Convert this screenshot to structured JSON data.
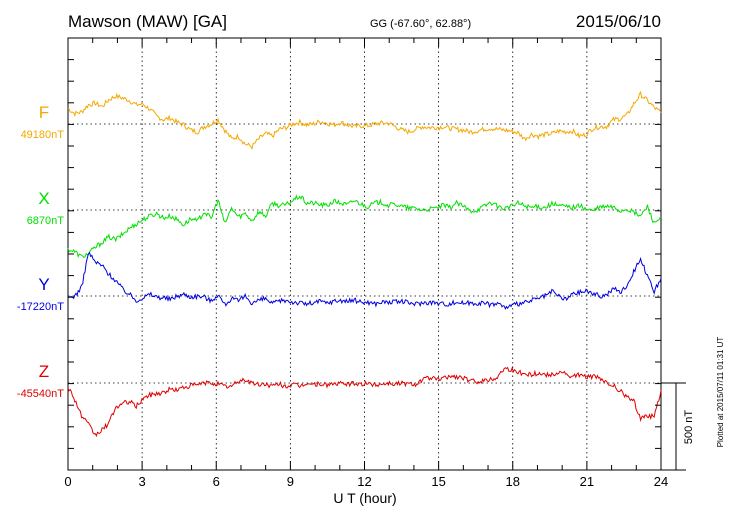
{
  "header": {
    "station": "Mawson (MAW)  [GA]",
    "coords": "GG (-67.60°,  62.88°)",
    "date": "2015/06/10"
  },
  "footer": {
    "plotted": "Plotted at 2015/07/11 01:31  UT",
    "scale_label": "500 nT"
  },
  "chart_data": {
    "type": "line",
    "xlabel": "U T (hour)",
    "xlim": [
      0,
      24
    ],
    "xticks": [
      0,
      3,
      6,
      9,
      12,
      15,
      18,
      21,
      24
    ],
    "scale_bar_nT": 500,
    "series": [
      {
        "name": "F",
        "baseline_label": "49180nT",
        "baseline_nT": 49180,
        "color": "#f5a800",
        "offsets_nT": [
          90,
          60,
          70,
          110,
          120,
          100,
          140,
          160,
          150,
          135,
          110,
          115,
          85,
          45,
          25,
          35,
          10,
          -5,
          -35,
          -45,
          -15,
          0,
          25,
          -35,
          -85,
          -70,
          -115,
          -130,
          -85,
          -55,
          -70,
          -30,
          -20,
          0,
          10,
          -5,
          0,
          15,
          5,
          -5,
          10,
          -5,
          -15,
          -10,
          -10,
          0,
          5,
          5,
          -15,
          -35,
          -45,
          -30,
          -15,
          -20,
          -20,
          -15,
          -25,
          -30,
          -35,
          -45,
          -40,
          -30,
          -25,
          -30,
          -35,
          -40,
          -50,
          -85,
          -60,
          -70,
          -60,
          -55,
          -40,
          -45,
          -40,
          -70,
          -60,
          -25,
          -15,
          -15,
          25,
          30,
          50,
          115,
          170,
          135,
          95,
          65
        ]
      },
      {
        "name": "X",
        "baseline_label": "6870nT",
        "baseline_nT": 6870,
        "color": "#00e000",
        "offsets_nT": [
          -225,
          -240,
          -270,
          -250,
          -215,
          -185,
          -155,
          -170,
          -140,
          -105,
          -80,
          -55,
          -35,
          -20,
          -45,
          -35,
          -55,
          -85,
          -50,
          -65,
          -10,
          -50,
          60,
          -80,
          10,
          -40,
          -20,
          -60,
          -10,
          -35,
          40,
          25,
          30,
          55,
          80,
          40,
          40,
          30,
          25,
          50,
          40,
          30,
          55,
          35,
          20,
          40,
          45,
          25,
          35,
          20,
          10,
          10,
          0,
          5,
          10,
          25,
          15,
          40,
          20,
          -5,
          0,
          20,
          45,
          20,
          10,
          20,
          40,
          25,
          15,
          20,
          15,
          35,
          25,
          20,
          15,
          25,
          5,
          -5,
          15,
          20,
          15,
          -5,
          5,
          -15,
          -35,
          20,
          -75,
          -40
        ]
      },
      {
        "name": "Y",
        "baseline_label": "-17220nT",
        "baseline_nT": -17220,
        "color": "#0000e0",
        "offsets_nT": [
          -10,
          0,
          50,
          250,
          195,
          175,
          125,
          90,
          40,
          10,
          -25,
          -10,
          10,
          -5,
          -10,
          -20,
          0,
          10,
          -5,
          0,
          -5,
          -30,
          10,
          -50,
          -15,
          -30,
          0,
          -40,
          -25,
          -15,
          -45,
          -30,
          -25,
          -35,
          -40,
          -45,
          -40,
          -30,
          -40,
          -30,
          -25,
          -30,
          -25,
          -35,
          -35,
          -45,
          -35,
          -35,
          -35,
          -30,
          -40,
          -45,
          -40,
          -35,
          -40,
          -45,
          -45,
          -35,
          -40,
          -40,
          -40,
          -40,
          -50,
          -40,
          -65,
          -60,
          -45,
          -40,
          -25,
          -15,
          0,
          25,
          0,
          -20,
          10,
          20,
          30,
          15,
          0,
          5,
          45,
          20,
          60,
          140,
          220,
          110,
          25,
          100
        ]
      },
      {
        "name": "Z",
        "baseline_label": "-45540nT",
        "baseline_nT": -45540,
        "color": "#e00000",
        "offsets_nT": [
          -20,
          -95,
          -190,
          -240,
          -300,
          -270,
          -230,
          -140,
          -120,
          -105,
          -135,
          -90,
          -70,
          -60,
          -55,
          -35,
          -40,
          -25,
          -15,
          -10,
          0,
          0,
          -5,
          -20,
          -20,
          10,
          20,
          0,
          -10,
          -5,
          -20,
          -5,
          -20,
          -10,
          -20,
          0,
          -10,
          -5,
          -10,
          -5,
          -5,
          -5,
          -5,
          -5,
          -5,
          -10,
          -5,
          0,
          -5,
          0,
          -5,
          -5,
          20,
          30,
          20,
          25,
          40,
          35,
          30,
          10,
          10,
          15,
          20,
          35,
          85,
          80,
          60,
          55,
          50,
          55,
          50,
          45,
          65,
          55,
          30,
          50,
          35,
          40,
          25,
          0,
          -15,
          -45,
          -80,
          -105,
          -200,
          -185,
          -195,
          -40
        ]
      }
    ]
  }
}
